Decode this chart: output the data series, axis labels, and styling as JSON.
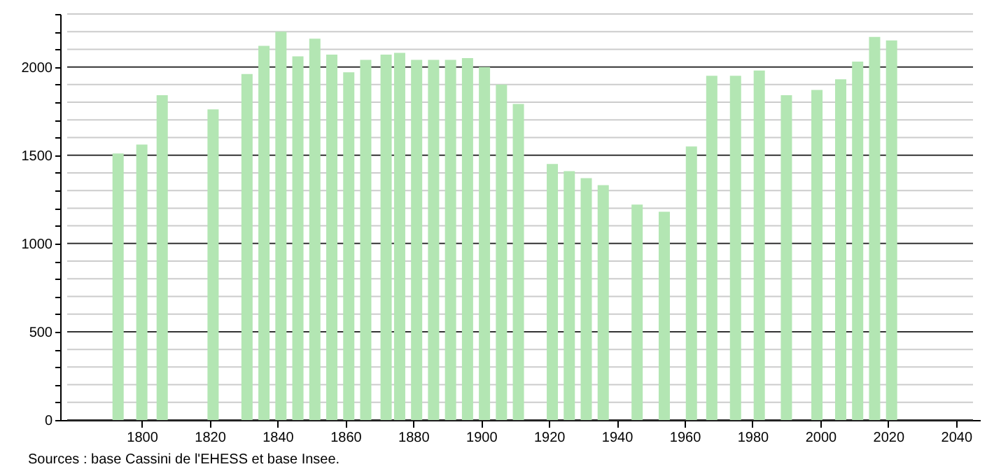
{
  "chart_data": {
    "type": "bar",
    "color": "#b3e6b3",
    "x": [
      1793,
      1800,
      1806,
      1821,
      1831,
      1836,
      1841,
      1846,
      1851,
      1856,
      1861,
      1866,
      1872,
      1876,
      1881,
      1886,
      1891,
      1896,
      1901,
      1906,
      1911,
      1921,
      1926,
      1931,
      1936,
      1946,
      1954,
      1962,
      1968,
      1975,
      1982,
      1990,
      1999,
      2006,
      2011,
      2016,
      2021
    ],
    "values": [
      1510,
      1560,
      1840,
      1760,
      1960,
      2120,
      2200,
      2060,
      2160,
      2070,
      1970,
      2040,
      2070,
      2080,
      2040,
      2040,
      2040,
      2050,
      2000,
      1900,
      1790,
      1450,
      1410,
      1370,
      1330,
      1220,
      1180,
      1550,
      1950,
      1950,
      1980,
      1840,
      1870,
      1930,
      2030,
      2170,
      2150
    ],
    "xlim": [
      1778,
      2045
    ],
    "xticks": [
      1800,
      1820,
      1840,
      1860,
      1880,
      1900,
      1920,
      1940,
      1960,
      1980,
      2000,
      2020,
      2040
    ],
    "ylim": [
      0,
      2300
    ],
    "yticks": [
      0,
      {
        "value": 100,
        "label": null
      },
      {
        "value": 200,
        "label": null
      },
      {
        "value": 300,
        "label": null
      },
      {
        "value": 400,
        "label": null
      },
      500,
      {
        "value": 600,
        "label": null
      },
      {
        "value": 700,
        "label": null
      },
      {
        "value": 800,
        "label": null
      },
      {
        "value": 900,
        "label": null
      },
      1000,
      {
        "value": 1100,
        "label": null
      },
      {
        "value": 1200,
        "label": null
      },
      {
        "value": 1300,
        "label": null
      },
      {
        "value": 1400,
        "label": null
      },
      1500,
      {
        "value": 1600,
        "label": null
      },
      {
        "value": 1700,
        "label": null
      },
      {
        "value": 1800,
        "label": null
      },
      {
        "value": 1900,
        "label": null
      },
      2000,
      {
        "value": 2100,
        "label": null
      },
      {
        "value": 2200,
        "label": null
      },
      {
        "value": 2300,
        "label": null
      }
    ],
    "grid": "y",
    "annotations": [
      "Sources : base Cassini de l'EHESS et base Insee."
    ]
  }
}
